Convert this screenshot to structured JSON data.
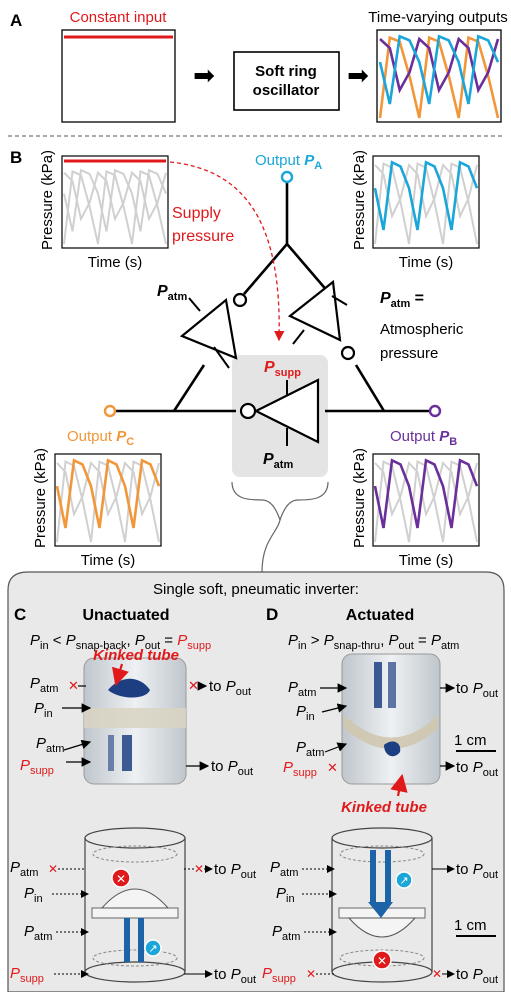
{
  "colors": {
    "red": "#e0191b",
    "blue": "#1aa6d9",
    "purple": "#6a2f9b",
    "orange": "#f2963a",
    "grey": "#d0d0d0",
    "panel": "#e9e9e9"
  },
  "panel_a": {
    "letter": "A",
    "input_label": "Constant input",
    "oscillator_line1": "Soft ring",
    "oscillator_line2": "oscillator",
    "output_label": "Time-varying outputs"
  },
  "panel_b": {
    "letter": "B",
    "ylabel": "Pressure (kPa)",
    "xlabel": "Time (s)",
    "supply_line1": "Supply",
    "supply_line2": "pressure",
    "output_a": "Output ",
    "p": "P",
    "sub_a": "A",
    "sub_b": "B",
    "sub_c": "C",
    "sub_atm": "atm",
    "sub_supp": "supp",
    "equals": " =",
    "atm_word": "Atmospheric",
    "pressure_word": "pressure"
  },
  "inverter_title": "Single soft, pneumatic inverter:",
  "panel_c": {
    "letter": "C",
    "title": "Unactuated",
    "cond_in": "in",
    "cond_lt": " < ",
    "cond_snapback": "snap-back",
    "cond_out": "out",
    "cond_eq": " = ",
    "kinked": "Kinked tube",
    "to": "to "
  },
  "panel_d": {
    "letter": "D",
    "title": "Actuated",
    "cond_gt": " > ",
    "cond_snapthru": "snap-thru",
    "scale": "1 cm"
  }
}
